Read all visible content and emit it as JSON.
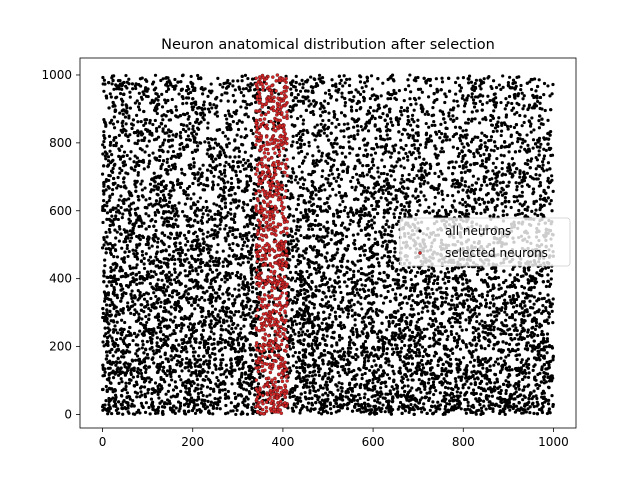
{
  "chart_data": {
    "type": "scatter",
    "title": "Neuron anatomical distribution after selection",
    "xlabel": "",
    "ylabel": "",
    "xlim": [
      -50,
      1050
    ],
    "ylim": [
      -40,
      1050
    ],
    "xticks": [
      0,
      200,
      400,
      600,
      800,
      1000
    ],
    "yticks": [
      0,
      200,
      400,
      600,
      800,
      1000
    ],
    "grid": false,
    "legend_position": "center-right",
    "series": [
      {
        "name": "all neurons",
        "color": "#000000",
        "count": 10000,
        "distribution": {
          "x_range": [
            0,
            1000
          ],
          "y_range": [
            0,
            1000
          ],
          "density": "denser at low y, sparser toward upper-right"
        }
      },
      {
        "name": "selected neurons",
        "color": "#d62728",
        "count": 900,
        "distribution": {
          "x_range": [
            340,
            410
          ],
          "y_range": [
            0,
            1000
          ],
          "density": "uniform band"
        }
      }
    ]
  }
}
